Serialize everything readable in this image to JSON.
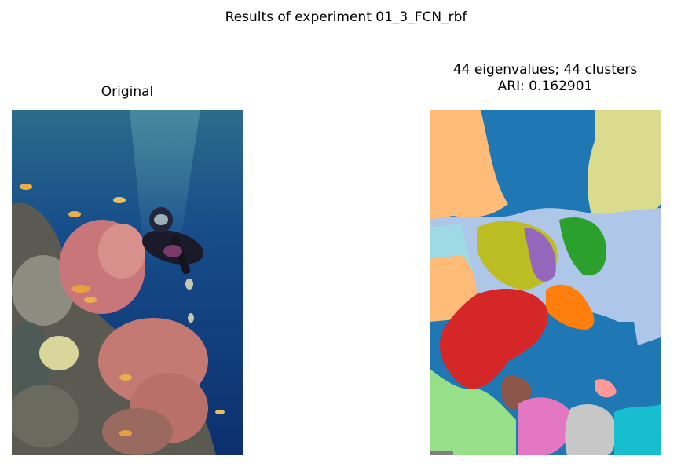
{
  "suptitle": "Results of experiment 01_3_FCN_rbf",
  "left_panel": {
    "title": "Original",
    "image": "photo of scuba diver among coral reef"
  },
  "right_panel": {
    "title_line1": "44 eigenvalues; 44 clusters",
    "title_line2": "ARI: 0.162901",
    "image": "segmentation map with 44 colored clusters"
  },
  "colors": {
    "blue": "#1f77b4",
    "peach": "#ffbb78",
    "khaki": "#dbdb8d",
    "light_blue": "#aec7e8",
    "cyan_light": "#9edae5",
    "olive": "#bcbd22",
    "purple": "#9467bd",
    "green": "#2ca02c",
    "orange": "#ff7f0e",
    "red": "#d62728",
    "brown": "#8c564b",
    "pink": "#e377c2",
    "light_green": "#98df8a",
    "gray_light": "#c7c7c7",
    "cyan": "#17becf",
    "light_pink": "#ff9896"
  }
}
